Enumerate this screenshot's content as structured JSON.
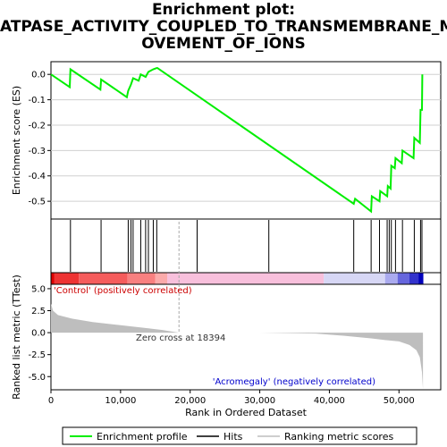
{
  "title_lines": [
    "Enrichment plot:",
    "ATPASE_ACTIVITY_COUPLED_TO_TRANSMEMBRANE_M",
    "OVEMENT_OF_IONS"
  ],
  "legend": {
    "enrichment": "Enrichment profile",
    "hits": "Hits",
    "metric": "Ranking metric scores"
  },
  "colors": {
    "enrichment": "#00ee00",
    "hits": "#000000",
    "metric_fill": "#bebebe",
    "pos_label": "#cc0000",
    "neg_label": "#0000cc",
    "zero_cross_line": "#aaaaaa"
  },
  "annotations": {
    "pos_label": "'Control' (positively correlated)",
    "neg_label": "'Acromegaly' (negatively correlated)",
    "zero_cross": "Zero cross at 18394"
  },
  "chart_data": {
    "type": "line",
    "xlabel": "Rank in Ordered Dataset",
    "x_ticks": [
      0,
      10000,
      20000,
      30000,
      40000,
      50000
    ],
    "x_tick_labels": [
      "0",
      "10,000",
      "20,000",
      "30,000",
      "40,000",
      "50,000"
    ],
    "xlim": [
      0,
      56000
    ],
    "zero_cross": 18394,
    "enrichment": {
      "ylabel": "Enrichment score (ES)",
      "ylim": [
        -0.57,
        0.05
      ],
      "y_ticks": [
        0.0,
        -0.1,
        -0.2,
        -0.3,
        -0.4,
        -0.5
      ],
      "y_tick_labels": [
        "0.0",
        "-0.1",
        "-0.2",
        "-0.3",
        "-0.4",
        "-0.5"
      ],
      "points": [
        [
          0,
          0.0
        ],
        [
          2700,
          -0.05
        ],
        [
          2800,
          0.02
        ],
        [
          7100,
          -0.06
        ],
        [
          7200,
          -0.02
        ],
        [
          10900,
          -0.09
        ],
        [
          11100,
          -0.065
        ],
        [
          11500,
          -0.04
        ],
        [
          11800,
          -0.015
        ],
        [
          12600,
          -0.025
        ],
        [
          12900,
          0.0
        ],
        [
          13600,
          -0.01
        ],
        [
          14000,
          0.01
        ],
        [
          14700,
          0.02
        ],
        [
          15200,
          0.025
        ],
        [
          15300,
          0.025
        ],
        [
          43500,
          -0.51
        ],
        [
          43700,
          -0.49
        ],
        [
          46000,
          -0.54
        ],
        [
          46100,
          -0.48
        ],
        [
          47200,
          -0.5
        ],
        [
          47300,
          -0.46
        ],
        [
          48300,
          -0.48
        ],
        [
          48400,
          -0.44
        ],
        [
          48800,
          -0.45
        ],
        [
          48900,
          -0.36
        ],
        [
          49400,
          -0.37
        ],
        [
          49500,
          -0.33
        ],
        [
          50400,
          -0.35
        ],
        [
          50500,
          -0.3
        ],
        [
          52100,
          -0.33
        ],
        [
          52200,
          -0.25
        ],
        [
          53000,
          -0.27
        ],
        [
          53100,
          -0.14
        ],
        [
          53300,
          -0.14
        ],
        [
          53350,
          0.0
        ]
      ]
    },
    "hits": [
      2800,
      7200,
      11100,
      11500,
      11800,
      12900,
      13600,
      14000,
      14700,
      15200,
      21000,
      31300,
      43500,
      46000,
      47200,
      48300,
      48600,
      48900,
      49500,
      50500,
      52200,
      53100,
      53300
    ],
    "heatmap": {
      "bands": [
        {
          "from": 0,
          "to": 500,
          "color": "#dd0000"
        },
        {
          "from": 500,
          "to": 4000,
          "color": "#ee3333"
        },
        {
          "from": 4000,
          "to": 11000,
          "color": "#f55c5c"
        },
        {
          "from": 11000,
          "to": 15000,
          "color": "#f88080"
        },
        {
          "from": 15000,
          "to": 16700,
          "color": "#fbaaaa"
        },
        {
          "from": 16700,
          "to": 39200,
          "color": "#f8c0dc"
        },
        {
          "from": 39200,
          "to": 48000,
          "color": "#d7d7f5"
        },
        {
          "from": 48000,
          "to": 49800,
          "color": "#aaaaee"
        },
        {
          "from": 49800,
          "to": 51500,
          "color": "#6666dd"
        },
        {
          "from": 51500,
          "to": 52800,
          "color": "#3333cc"
        },
        {
          "from": 52800,
          "to": 53500,
          "color": "#0000bb"
        }
      ]
    },
    "metric": {
      "ylabel": "Ranked list metric (TTest)",
      "ylim": [
        -6.5,
        5.5
      ],
      "y_ticks": [
        5.0,
        2.5,
        0.0,
        -2.5,
        -5.0
      ],
      "y_tick_labels": [
        "5.0",
        "2.5",
        "0.0",
        "-2.5",
        "-5.0"
      ],
      "points": [
        [
          0,
          3.3
        ],
        [
          300,
          2.5
        ],
        [
          1000,
          2.0
        ],
        [
          3000,
          1.6
        ],
        [
          6000,
          1.2
        ],
        [
          10000,
          0.85
        ],
        [
          14000,
          0.5
        ],
        [
          16000,
          0.3
        ],
        [
          18394,
          0.0
        ],
        [
          30000,
          0.0
        ],
        [
          38000,
          -0.1
        ],
        [
          42000,
          -0.35
        ],
        [
          46000,
          -0.65
        ],
        [
          48000,
          -0.85
        ],
        [
          50000,
          -1.0
        ],
        [
          51500,
          -1.4
        ],
        [
          52500,
          -2.0
        ],
        [
          53000,
          -2.8
        ],
        [
          53300,
          -4.5
        ],
        [
          53450,
          -6.4
        ]
      ]
    }
  }
}
